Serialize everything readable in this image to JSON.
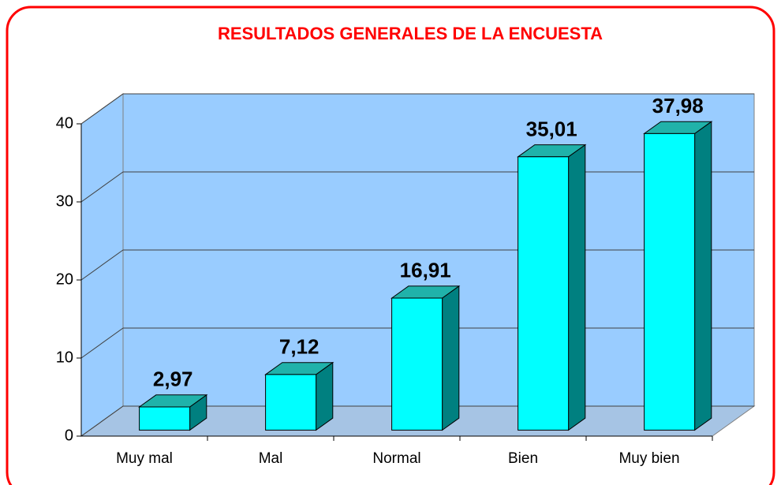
{
  "chart_data": {
    "type": "bar3d",
    "title": "RESULTADOS GENERALES DE LA ENCUESTA",
    "categories": [
      "Muy mal",
      "Mal",
      "Normal",
      "Bien",
      "Muy bien"
    ],
    "values": [
      2.97,
      7.12,
      16.91,
      35.01,
      37.98
    ],
    "value_labels": [
      "2,97",
      "7,12",
      "16,91",
      "35,01",
      "37,98"
    ],
    "color": "#00ffff",
    "ylim": [
      0,
      40
    ],
    "yticks": [
      0,
      10,
      20,
      30,
      40
    ],
    "grid": true
  }
}
